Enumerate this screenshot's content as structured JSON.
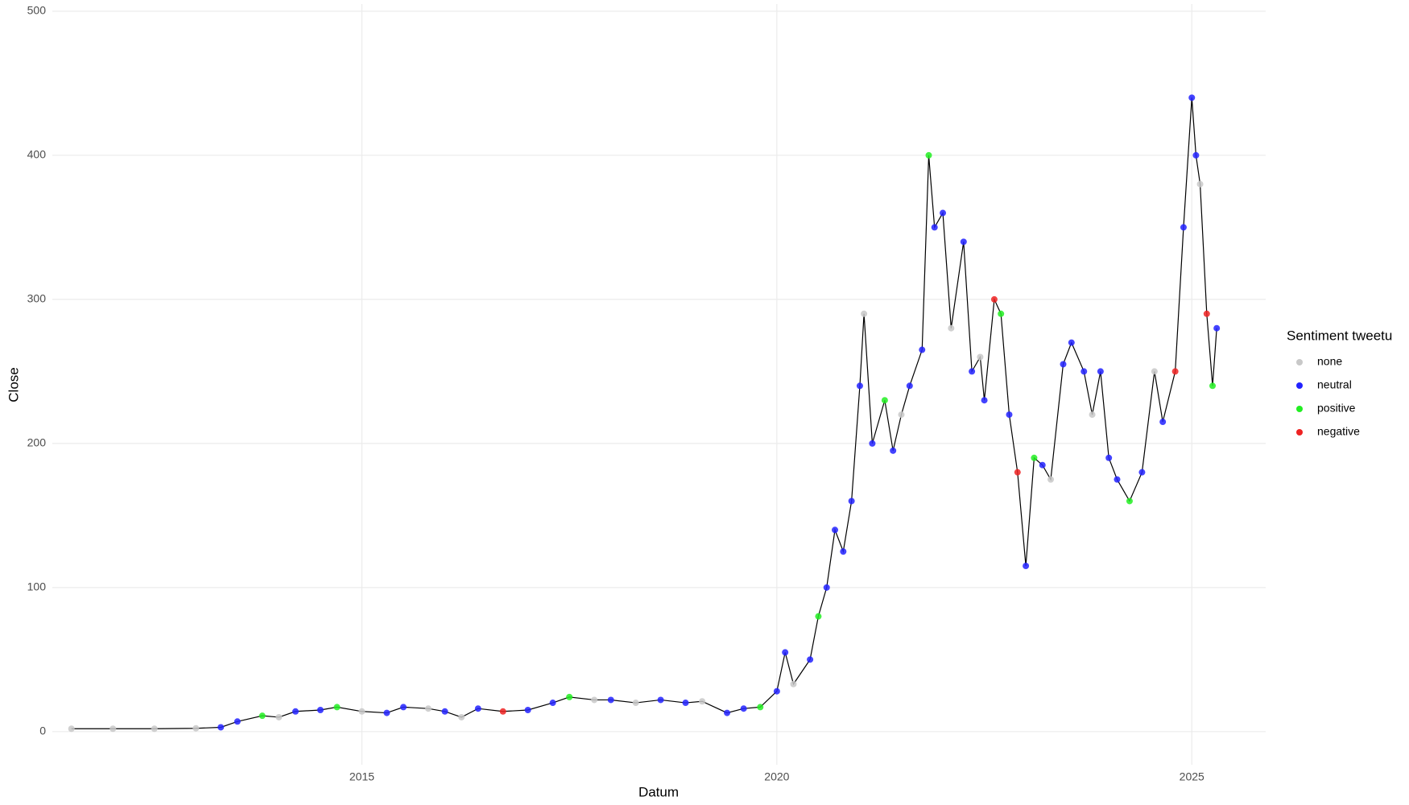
{
  "chart_data": {
    "type": "scatter",
    "x_label": "Datum",
    "y_label": "Close",
    "legend_title": "Sentiment tweetu",
    "legend": "right",
    "grid": true,
    "xlim": [
      2011.27,
      2025.89
    ],
    "ylim": [
      -23,
      505
    ],
    "xticks": [
      2015,
      2020,
      2025
    ],
    "yticks": [
      0,
      100,
      200,
      300,
      400,
      500
    ],
    "line": {
      "color": "#000000",
      "x": [
        2011.5,
        2012.0,
        2012.5,
        2013.0,
        2013.3,
        2013.5,
        2013.8,
        2014.0,
        2014.2,
        2014.5,
        2014.7,
        2015.0,
        2015.3,
        2015.5,
        2015.8,
        2016.0,
        2016.2,
        2016.4,
        2016.7,
        2017.0,
        2017.3,
        2017.5,
        2017.8,
        2018.0,
        2018.3,
        2018.6,
        2018.9,
        2019.1,
        2019.4,
        2019.6,
        2019.8,
        2020.0,
        2020.1,
        2020.2,
        2020.4,
        2020.5,
        2020.6,
        2020.7,
        2020.8,
        2020.9,
        2021.0,
        2021.05,
        2021.15,
        2021.3,
        2021.4,
        2021.5,
        2021.6,
        2021.75,
        2021.83,
        2021.9,
        2022.0,
        2022.1,
        2022.25,
        2022.35,
        2022.45,
        2022.5,
        2022.62,
        2022.7,
        2022.8,
        2022.9,
        2023.0,
        2023.1,
        2023.2,
        2023.3,
        2023.45,
        2023.55,
        2023.7,
        2023.8,
        2023.9,
        2024.0,
        2024.1,
        2024.25,
        2024.4,
        2024.55,
        2024.65,
        2024.8,
        2024.9,
        2025.0,
        2025.05,
        2025.1,
        2025.18,
        2025.25,
        2025.3
      ],
      "values": [
        2,
        2,
        2,
        2.3,
        3,
        7,
        11,
        10,
        14,
        15,
        17,
        14,
        13,
        17,
        16,
        14,
        10,
        16,
        14,
        15,
        20,
        24,
        22,
        22,
        20,
        22,
        20,
        21,
        13,
        16,
        17,
        28,
        55,
        33,
        50,
        80,
        100,
        140,
        125,
        160,
        240,
        290,
        200,
        230,
        195,
        220,
        240,
        265,
        400,
        350,
        360,
        280,
        340,
        250,
        260,
        230,
        300,
        290,
        220,
        180,
        115,
        190,
        185,
        175,
        255,
        270,
        250,
        220,
        250,
        190,
        175,
        160,
        180,
        250,
        215,
        250,
        350,
        440,
        400,
        380,
        290,
        240,
        280
      ]
    },
    "series": [
      {
        "name": "none",
        "color": "#c8c8c8",
        "x": [
          2011.5,
          2012.0,
          2012.5,
          2013.0,
          2014.0,
          2015.0,
          2015.8,
          2016.2,
          2017.8,
          2018.3,
          2019.1,
          2020.2,
          2021.05,
          2021.5,
          2022.1,
          2022.45,
          2023.3,
          2023.8,
          2024.55,
          2025.1
        ],
        "values": [
          2,
          2,
          2,
          2.3,
          10,
          14,
          16,
          10,
          22,
          20,
          21,
          33,
          290,
          220,
          280,
          260,
          175,
          220,
          250,
          380
        ]
      },
      {
        "name": "neutral",
        "color": "#2222ff",
        "x": [
          2013.3,
          2013.5,
          2014.2,
          2014.5,
          2015.3,
          2015.5,
          2016.0,
          2016.4,
          2017.0,
          2017.3,
          2018.0,
          2018.6,
          2018.9,
          2019.4,
          2019.6,
          2020.0,
          2020.1,
          2020.4,
          2020.6,
          2020.7,
          2020.8,
          2020.9,
          2021.0,
          2021.15,
          2021.4,
          2021.6,
          2021.75,
          2021.9,
          2022.0,
          2022.25,
          2022.35,
          2022.5,
          2022.8,
          2023.0,
          2023.2,
          2023.45,
          2023.55,
          2023.7,
          2023.9,
          2024.0,
          2024.1,
          2024.4,
          2024.65,
          2024.9,
          2025.0,
          2025.05,
          2025.3
        ],
        "values": [
          3,
          7,
          14,
          15,
          13,
          17,
          14,
          16,
          15,
          20,
          22,
          22,
          20,
          13,
          16,
          28,
          55,
          50,
          100,
          140,
          125,
          160,
          240,
          200,
          195,
          240,
          265,
          350,
          360,
          340,
          250,
          230,
          220,
          115,
          185,
          255,
          270,
          250,
          250,
          190,
          175,
          180,
          215,
          350,
          440,
          400,
          280
        ]
      },
      {
        "name": "positive",
        "color": "#22ee22",
        "x": [
          2013.8,
          2014.7,
          2017.5,
          2019.8,
          2020.5,
          2021.3,
          2021.83,
          2022.7,
          2023.1,
          2024.25,
          2025.25
        ],
        "values": [
          11,
          17,
          24,
          17,
          80,
          230,
          400,
          290,
          190,
          160,
          240
        ]
      },
      {
        "name": "negative",
        "color": "#ee2222",
        "x": [
          2016.7,
          2022.62,
          2022.9,
          2024.8,
          2025.18
        ],
        "values": [
          14,
          300,
          180,
          250,
          290
        ]
      }
    ]
  }
}
